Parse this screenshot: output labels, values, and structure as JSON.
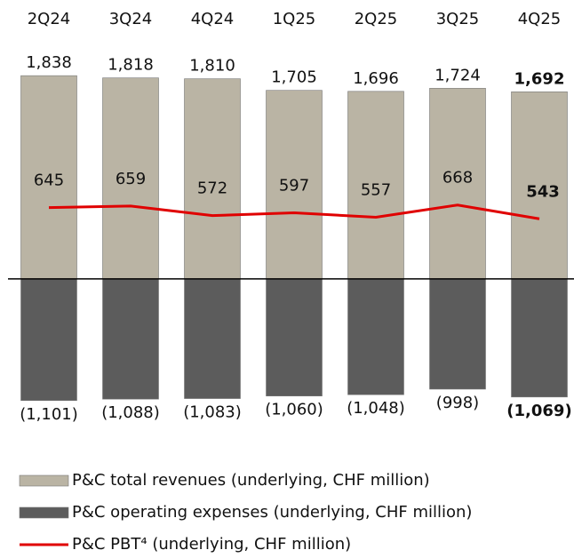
{
  "chart_data": {
    "type": "bar",
    "categories": [
      "2Q24",
      "3Q24",
      "4Q24",
      "1Q25",
      "2Q25",
      "3Q25",
      "4Q25"
    ],
    "ylim": [
      -1400,
      2000
    ],
    "series": [
      {
        "name": "P&C total revenues (underlying, CHF million)",
        "type": "bar",
        "color": "#bab4a4",
        "values": [
          1838,
          1818,
          1810,
          1705,
          1696,
          1724,
          1692
        ],
        "value_labels": [
          "1,838",
          "1,818",
          "1,810",
          "1,705",
          "1,696",
          "1,724",
          "1,692"
        ]
      },
      {
        "name": "P&C operating expenses (underlying, CHF million)",
        "type": "bar",
        "color": "#5c5c5c",
        "values": [
          -1101,
          -1088,
          -1083,
          -1060,
          -1048,
          -998,
          -1069
        ],
        "value_labels": [
          "(1,101)",
          "(1,088)",
          "(1,083)",
          "(1,060)",
          "(1,048)",
          "(998)",
          "(1,069)"
        ]
      },
      {
        "name": "P&C PBT⁴ (underlying, CHF million)",
        "type": "line",
        "color": "#e00000",
        "values": [
          645,
          659,
          572,
          597,
          557,
          668,
          543
        ]
      }
    ]
  }
}
